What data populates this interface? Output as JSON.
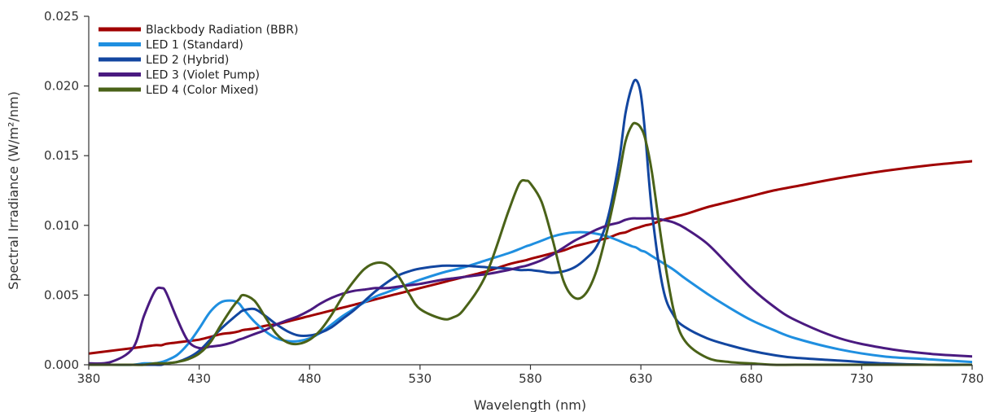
{
  "chart_data": {
    "type": "line",
    "title": "",
    "xlabel": "Wavelength (nm)",
    "ylabel": "Spectral Irradiance (W/m²/nm)",
    "xlim": [
      380,
      780
    ],
    "ylim": [
      0,
      0.025
    ],
    "x_ticks": [
      "380",
      "430",
      "480",
      "530",
      "580",
      "630",
      "680",
      "730",
      "780"
    ],
    "y_ticks": [
      "0.000",
      "0.005",
      "0.010",
      "0.015",
      "0.020",
      "0.025"
    ],
    "grid": false,
    "legend_position": "top-left",
    "x": [
      380,
      390,
      400,
      405,
      410,
      413,
      415,
      420,
      425,
      430,
      435,
      440,
      445,
      448,
      450,
      455,
      460,
      465,
      470,
      475,
      480,
      485,
      490,
      495,
      500,
      505,
      510,
      515,
      520,
      525,
      530,
      540,
      545,
      550,
      560,
      570,
      575,
      578,
      580,
      585,
      590,
      595,
      600,
      605,
      610,
      615,
      620,
      623,
      626,
      628,
      630,
      632,
      635,
      640,
      645,
      650,
      660,
      670,
      680,
      690,
      700,
      720,
      740,
      760,
      780
    ],
    "series": [
      {
        "name": "Blackbody Radiation (BBR)",
        "color": "#a00000",
        "values": [
          0.0008,
          0.001,
          0.0012,
          0.0013,
          0.0014,
          0.0014,
          0.0015,
          0.0016,
          0.0017,
          0.0018,
          0.002,
          0.0022,
          0.0023,
          0.0024,
          0.0025,
          0.0026,
          0.0028,
          0.0029,
          0.0031,
          0.0033,
          0.0035,
          0.0037,
          0.0039,
          0.0041,
          0.0043,
          0.0045,
          0.0047,
          0.0049,
          0.0051,
          0.0053,
          0.0055,
          0.0059,
          0.0061,
          0.0063,
          0.0067,
          0.0072,
          0.0074,
          0.0075,
          0.0076,
          0.0078,
          0.008,
          0.0082,
          0.0085,
          0.0087,
          0.0089,
          0.0091,
          0.0094,
          0.0095,
          0.0097,
          0.0098,
          0.0099,
          0.01,
          0.0101,
          0.0104,
          0.0106,
          0.0108,
          0.0113,
          0.0117,
          0.0121,
          0.0125,
          0.0128,
          0.0134,
          0.0139,
          0.0143,
          0.0146
        ]
      },
      {
        "name": "LED 1 (Standard)",
        "color": "#1f8fe0",
        "values": [
          0.0,
          0.0,
          0.0,
          0.0001,
          0.0001,
          0.0002,
          0.0003,
          0.0007,
          0.0015,
          0.0026,
          0.0038,
          0.0045,
          0.0046,
          0.0044,
          0.004,
          0.0031,
          0.0024,
          0.0019,
          0.0017,
          0.0017,
          0.0019,
          0.0023,
          0.0029,
          0.0035,
          0.004,
          0.0045,
          0.0049,
          0.0052,
          0.0055,
          0.0058,
          0.0061,
          0.0066,
          0.0068,
          0.007,
          0.0075,
          0.008,
          0.0083,
          0.0085,
          0.0086,
          0.0089,
          0.0092,
          0.0094,
          0.0095,
          0.0095,
          0.0094,
          0.0092,
          0.0089,
          0.0087,
          0.0085,
          0.0084,
          0.0082,
          0.0081,
          0.0078,
          0.0073,
          0.0068,
          0.0062,
          0.0051,
          0.0041,
          0.0032,
          0.0025,
          0.0019,
          0.0011,
          0.0006,
          0.0004,
          0.0002
        ]
      },
      {
        "name": "LED 2 (Hybrid)",
        "color": "#1246a0",
        "values": [
          0.0,
          0.0,
          0.0,
          0.0,
          0.0,
          0.0,
          0.0001,
          0.0002,
          0.0005,
          0.001,
          0.0018,
          0.0026,
          0.0033,
          0.0037,
          0.0039,
          0.004,
          0.0035,
          0.0029,
          0.0024,
          0.0021,
          0.0021,
          0.0023,
          0.0027,
          0.0033,
          0.0039,
          0.0046,
          0.0053,
          0.0059,
          0.0064,
          0.0067,
          0.0069,
          0.0071,
          0.0071,
          0.0071,
          0.007,
          0.0069,
          0.0068,
          0.0068,
          0.0068,
          0.0067,
          0.0066,
          0.0067,
          0.007,
          0.0076,
          0.0085,
          0.0105,
          0.0145,
          0.018,
          0.02,
          0.0204,
          0.0194,
          0.0165,
          0.011,
          0.0055,
          0.0035,
          0.0027,
          0.0019,
          0.0014,
          0.001,
          0.0007,
          0.0005,
          0.0003,
          0.0001,
          0.0,
          0.0
        ]
      },
      {
        "name": "LED 3 (Violet Pump)",
        "color": "#4a1a80",
        "values": [
          0.0001,
          0.0002,
          0.0012,
          0.0035,
          0.0053,
          0.0055,
          0.0052,
          0.0033,
          0.0017,
          0.0012,
          0.0013,
          0.0014,
          0.0016,
          0.0018,
          0.0019,
          0.0022,
          0.0025,
          0.0029,
          0.0032,
          0.0035,
          0.0039,
          0.0044,
          0.0048,
          0.0051,
          0.0053,
          0.0054,
          0.0055,
          0.0055,
          0.0056,
          0.0057,
          0.0058,
          0.0061,
          0.0062,
          0.0063,
          0.0065,
          0.0068,
          0.007,
          0.0071,
          0.0072,
          0.0075,
          0.0079,
          0.0084,
          0.0089,
          0.0093,
          0.0097,
          0.01,
          0.0102,
          0.0104,
          0.0105,
          0.0105,
          0.0105,
          0.0105,
          0.0105,
          0.0104,
          0.0102,
          0.0098,
          0.0087,
          0.0071,
          0.0055,
          0.0042,
          0.0032,
          0.0019,
          0.0012,
          0.0008,
          0.0006
        ]
      },
      {
        "name": "LED 4 (Color Mixed)",
        "color": "#4a6218",
        "values": [
          0.0,
          0.0,
          0.0,
          0.0,
          0.0001,
          0.0001,
          0.0001,
          0.0002,
          0.0004,
          0.0008,
          0.0016,
          0.0029,
          0.0041,
          0.0047,
          0.005,
          0.0046,
          0.0034,
          0.0022,
          0.0016,
          0.0015,
          0.0018,
          0.0025,
          0.0036,
          0.0049,
          0.006,
          0.0069,
          0.0073,
          0.0072,
          0.0064,
          0.0051,
          0.004,
          0.0033,
          0.0034,
          0.004,
          0.0065,
          0.011,
          0.013,
          0.0132,
          0.013,
          0.0117,
          0.009,
          0.006,
          0.0048,
          0.0051,
          0.0068,
          0.0098,
          0.0135,
          0.016,
          0.0172,
          0.0173,
          0.017,
          0.0162,
          0.0138,
          0.0082,
          0.0038,
          0.0017,
          0.0005,
          0.0002,
          0.0001,
          0.0,
          0.0,
          0.0,
          0.0,
          0.0,
          0.0
        ]
      }
    ]
  }
}
